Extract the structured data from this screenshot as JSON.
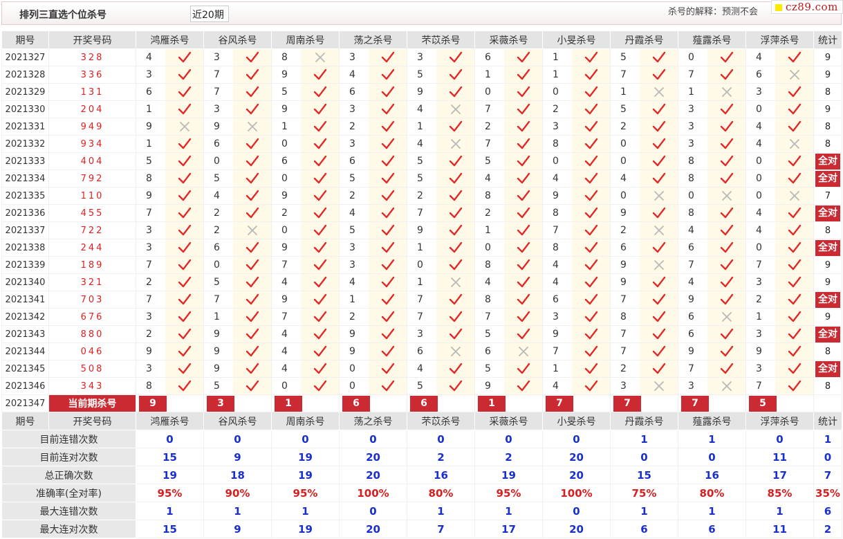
{
  "header": {
    "title": "排列三直选个位杀号",
    "period_select": "近20期",
    "explanation": "杀号的解释：预测不会",
    "logo_text": "cz89.com"
  },
  "columns": [
    "期号",
    "开奖号码",
    "鸿雁杀号",
    "谷风杀号",
    "周南杀号",
    "荡之杀号",
    "芣苡杀号",
    "采薇杀号",
    "小旻杀号",
    "丹霞杀号",
    "薤露杀号",
    "浮萍杀号",
    "统计"
  ],
  "rows": [
    {
      "period": "2021327",
      "draw": "328",
      "kills": [
        4,
        3,
        8,
        3,
        3,
        6,
        1,
        5,
        0,
        4
      ],
      "ok": [
        1,
        1,
        0,
        1,
        1,
        1,
        1,
        1,
        1,
        1
      ],
      "stat": "9"
    },
    {
      "period": "2021328",
      "draw": "336",
      "kills": [
        3,
        7,
        9,
        4,
        5,
        1,
        1,
        7,
        7,
        6
      ],
      "ok": [
        1,
        1,
        1,
        1,
        1,
        1,
        1,
        1,
        1,
        0
      ],
      "stat": "9"
    },
    {
      "period": "2021329",
      "draw": "131",
      "kills": [
        6,
        7,
        5,
        6,
        9,
        0,
        0,
        1,
        1,
        3
      ],
      "ok": [
        1,
        1,
        1,
        1,
        1,
        1,
        1,
        0,
        0,
        1
      ],
      "stat": "8"
    },
    {
      "period": "2021330",
      "draw": "204",
      "kills": [
        1,
        3,
        9,
        3,
        4,
        7,
        2,
        5,
        3,
        0
      ],
      "ok": [
        1,
        1,
        1,
        1,
        0,
        1,
        1,
        1,
        1,
        1
      ],
      "stat": "9"
    },
    {
      "period": "2021331",
      "draw": "949",
      "kills": [
        9,
        9,
        1,
        2,
        1,
        2,
        3,
        2,
        3,
        4
      ],
      "ok": [
        0,
        0,
        1,
        1,
        1,
        1,
        1,
        1,
        1,
        1
      ],
      "stat": "8"
    },
    {
      "period": "2021332",
      "draw": "934",
      "kills": [
        1,
        6,
        0,
        3,
        4,
        7,
        8,
        0,
        3,
        4
      ],
      "ok": [
        1,
        1,
        1,
        1,
        0,
        1,
        1,
        1,
        1,
        0
      ],
      "stat": "8"
    },
    {
      "period": "2021333",
      "draw": "404",
      "kills": [
        5,
        0,
        6,
        6,
        5,
        5,
        0,
        0,
        8,
        0
      ],
      "ok": [
        1,
        1,
        1,
        1,
        1,
        1,
        1,
        1,
        1,
        1
      ],
      "stat": "全对"
    },
    {
      "period": "2021334",
      "draw": "792",
      "kills": [
        8,
        5,
        0,
        5,
        5,
        4,
        4,
        4,
        8,
        0
      ],
      "ok": [
        1,
        1,
        1,
        1,
        1,
        1,
        1,
        1,
        1,
        1
      ],
      "stat": "全对"
    },
    {
      "period": "2021335",
      "draw": "110",
      "kills": [
        9,
        4,
        9,
        2,
        2,
        8,
        9,
        0,
        0,
        0
      ],
      "ok": [
        1,
        1,
        1,
        1,
        1,
        1,
        1,
        0,
        0,
        0
      ],
      "stat": "7"
    },
    {
      "period": "2021336",
      "draw": "455",
      "kills": [
        7,
        2,
        2,
        4,
        7,
        2,
        8,
        9,
        8,
        4
      ],
      "ok": [
        1,
        1,
        1,
        1,
        1,
        1,
        1,
        1,
        1,
        1
      ],
      "stat": "全对"
    },
    {
      "period": "2021337",
      "draw": "722",
      "kills": [
        3,
        2,
        0,
        5,
        9,
        1,
        7,
        2,
        4,
        4
      ],
      "ok": [
        1,
        0,
        1,
        1,
        1,
        1,
        1,
        0,
        1,
        1
      ],
      "stat": "8"
    },
    {
      "period": "2021338",
      "draw": "244",
      "kills": [
        3,
        6,
        9,
        3,
        1,
        0,
        8,
        6,
        6,
        0
      ],
      "ok": [
        1,
        1,
        1,
        1,
        1,
        1,
        1,
        1,
        1,
        1
      ],
      "stat": "全对"
    },
    {
      "period": "2021339",
      "draw": "189",
      "kills": [
        7,
        0,
        7,
        3,
        0,
        8,
        4,
        9,
        7,
        7
      ],
      "ok": [
        1,
        1,
        1,
        1,
        1,
        1,
        1,
        0,
        1,
        1
      ],
      "stat": "9"
    },
    {
      "period": "2021340",
      "draw": "321",
      "kills": [
        2,
        5,
        4,
        4,
        1,
        4,
        4,
        9,
        4,
        3
      ],
      "ok": [
        1,
        1,
        1,
        1,
        0,
        1,
        1,
        1,
        1,
        1
      ],
      "stat": "9"
    },
    {
      "period": "2021341",
      "draw": "703",
      "kills": [
        7,
        7,
        9,
        1,
        7,
        8,
        6,
        7,
        9,
        2
      ],
      "ok": [
        1,
        1,
        1,
        1,
        1,
        1,
        1,
        1,
        1,
        1
      ],
      "stat": "全对"
    },
    {
      "period": "2021342",
      "draw": "676",
      "kills": [
        3,
        1,
        7,
        2,
        7,
        7,
        3,
        8,
        6,
        1
      ],
      "ok": [
        1,
        1,
        1,
        1,
        1,
        1,
        1,
        1,
        0,
        1
      ],
      "stat": "9"
    },
    {
      "period": "2021343",
      "draw": "880",
      "kills": [
        2,
        9,
        4,
        9,
        3,
        5,
        9,
        7,
        6,
        3
      ],
      "ok": [
        1,
        1,
        1,
        1,
        1,
        1,
        1,
        1,
        1,
        1
      ],
      "stat": "全对"
    },
    {
      "period": "2021344",
      "draw": "046",
      "kills": [
        9,
        9,
        4,
        9,
        6,
        6,
        7,
        7,
        9,
        9
      ],
      "ok": [
        1,
        1,
        1,
        1,
        0,
        0,
        1,
        1,
        1,
        1
      ],
      "stat": "8"
    },
    {
      "period": "2021345",
      "draw": "508",
      "kills": [
        3,
        9,
        4,
        0,
        4,
        5,
        1,
        2,
        7,
        3
      ],
      "ok": [
        1,
        1,
        1,
        1,
        1,
        1,
        1,
        1,
        1,
        1
      ],
      "stat": "全对"
    },
    {
      "period": "2021346",
      "draw": "343",
      "kills": [
        8,
        5,
        0,
        0,
        5,
        9,
        4,
        3,
        3,
        7
      ],
      "ok": [
        1,
        1,
        1,
        1,
        1,
        1,
        1,
        0,
        0,
        1
      ],
      "stat": "8"
    }
  ],
  "current": {
    "period": "2021347",
    "label": "当前期杀号",
    "kills": [
      "9",
      "3",
      "1",
      "6",
      "6",
      "1",
      "7",
      "7",
      "7",
      "5"
    ]
  },
  "summary": [
    {
      "label": "目前连错次数",
      "values": [
        "0",
        "0",
        "0",
        "0",
        "0",
        "0",
        "0",
        "1",
        "1",
        "0",
        "1"
      ]
    },
    {
      "label": "目前连对次数",
      "values": [
        "15",
        "9",
        "19",
        "20",
        "2",
        "2",
        "20",
        "0",
        "0",
        "11",
        "0"
      ]
    },
    {
      "label": "总正确次数",
      "values": [
        "19",
        "18",
        "19",
        "20",
        "16",
        "19",
        "20",
        "15",
        "16",
        "17",
        "7"
      ]
    },
    {
      "label": "准确率(全对率)",
      "values": [
        "95%",
        "90%",
        "95%",
        "100%",
        "80%",
        "95%",
        "100%",
        "75%",
        "80%",
        "85%",
        "35%"
      ]
    },
    {
      "label": "最大连错次数",
      "values": [
        "1",
        "1",
        "1",
        "0",
        "1",
        "1",
        "0",
        "1",
        "1",
        "1",
        "6"
      ]
    },
    {
      "label": "最大连对次数",
      "values": [
        "15",
        "9",
        "19",
        "20",
        "7",
        "17",
        "20",
        "6",
        "6",
        "11",
        "2"
      ]
    }
  ],
  "colors": {
    "check": "#e02a2a",
    "cross": "#b8b8b8",
    "badge": "#cc2a33",
    "summary_blue": "#1a2fd0",
    "rate_red": "#d81e1e"
  }
}
